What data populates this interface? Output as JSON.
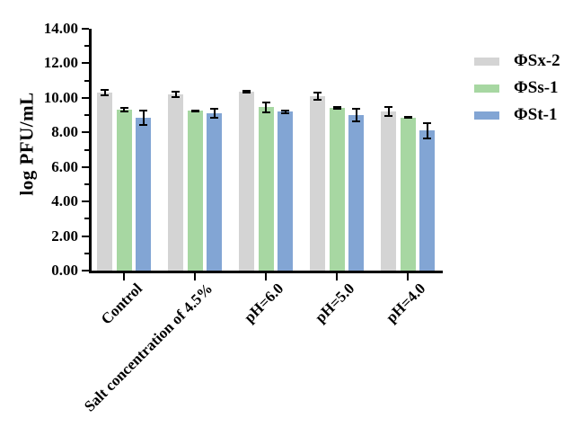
{
  "chart_data": {
    "type": "bar",
    "title": "",
    "ylabel": "log PFU/mL",
    "xlabel": "",
    "ylim": [
      0,
      14
    ],
    "ytick_step": 2,
    "ytick_labels": [
      "0.00",
      "2.00",
      "4.00",
      "6.00",
      "8.00",
      "10.00",
      "12.00",
      "14.00"
    ],
    "minor_tick_step": 1,
    "grid": false,
    "legend_position": "right",
    "background_color": "#ffffff",
    "axis_color": "#000000",
    "categories": [
      "Control",
      "Salt concentration of 4.5%",
      "pH=6.0",
      "pH=5.0",
      "pH=4.0"
    ],
    "series": [
      {
        "name": "ΦSx-2",
        "color": "#d4d4d4",
        "values": [
          10.3,
          10.2,
          10.35,
          10.1,
          9.2
        ],
        "errors": [
          0.2,
          0.2,
          0.1,
          0.25,
          0.3
        ]
      },
      {
        "name": "ΦSs-1",
        "color": "#a7d7a2",
        "values": [
          9.3,
          9.25,
          9.45,
          9.4,
          8.85
        ],
        "errors": [
          0.15,
          0.08,
          0.35,
          0.1,
          0.08
        ]
      },
      {
        "name": "ΦSt-1",
        "color": "#82a5d4",
        "values": [
          8.85,
          9.1,
          9.2,
          9.0,
          8.1
        ],
        "errors": [
          0.45,
          0.3,
          0.13,
          0.4,
          0.5
        ]
      }
    ]
  }
}
